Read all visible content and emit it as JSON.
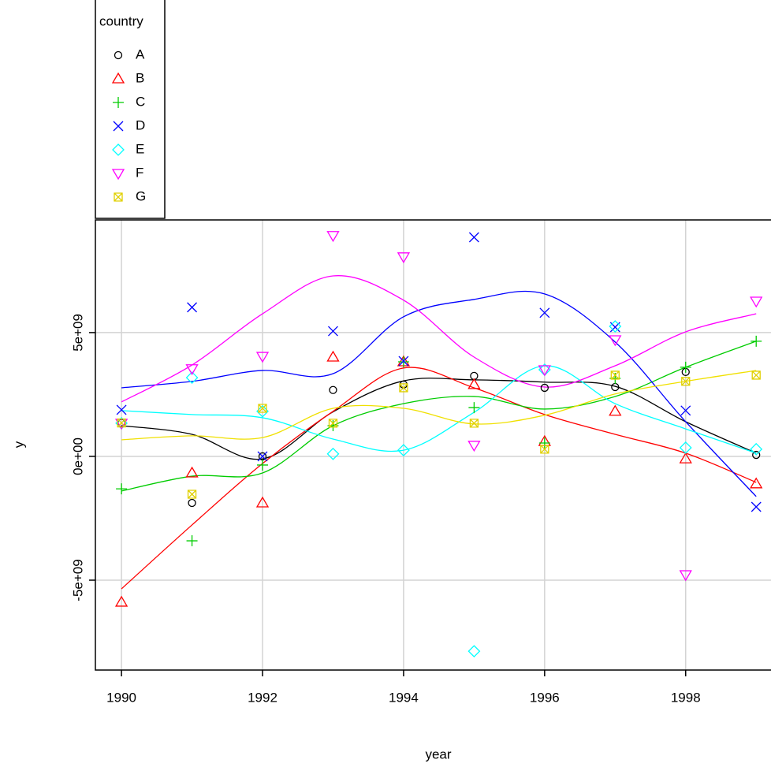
{
  "chart_data": {
    "type": "scatter",
    "x_label": "year",
    "y_label": "y",
    "legend_title": "country",
    "legend_position": "top-left",
    "grid": true,
    "x": [
      1990,
      1991,
      1992,
      1993,
      1994,
      1995,
      1996,
      1997,
      1998,
      1999
    ],
    "xlim": [
      1989.63,
      1999.21
    ],
    "xticks": [
      1990,
      1992,
      1994,
      1996,
      1998
    ],
    "ylim": [
      -8630000000,
      9550000000
    ],
    "yticks": [
      {
        "value": -5000000000,
        "label": "-5e+09"
      },
      {
        "value": 0,
        "label": "0e+00"
      },
      {
        "value": 5000000000,
        "label": "5e+09"
      }
    ],
    "series": [
      {
        "name": "A",
        "color": "#000000",
        "marker": "circle",
        "values": [
          1350000000,
          -1880000000,
          0,
          2680000000,
          2900000000,
          3250000000,
          2770000000,
          2800000000,
          3410000000,
          60000000
        ],
        "smooth": [
          1240000000,
          890000000,
          -100000000,
          1800000000,
          3050000000,
          3090000000,
          3000000000,
          2830000000,
          1400000000,
          130000000
        ]
      },
      {
        "name": "B",
        "color": "#ff0000",
        "marker": "triangle",
        "values": [
          -5890000000,
          -670000000,
          -1880000000,
          4010000000,
          3820000000,
          2900000000,
          600000000,
          1820000000,
          -100000000,
          -1110000000
        ],
        "smooth": [
          -5350000000,
          -2770000000,
          -290000000,
          1820000000,
          3570000000,
          2770000000,
          1690000000,
          890000000,
          130000000,
          -1050000000
        ]
      },
      {
        "name": "C",
        "color": "#00cc00",
        "marker": "plus",
        "values": [
          -1310000000,
          -3410000000,
          -350000000,
          1240000000,
          3820000000,
          1970000000,
          540000000,
          3150000000,
          3600000000,
          4650000000
        ],
        "smooth": [
          -1400000000,
          -800000000,
          -670000000,
          1240000000,
          2130000000,
          2420000000,
          1910000000,
          2420000000,
          3600000000,
          4650000000
        ]
      },
      {
        "name": "D",
        "color": "#0000ff",
        "marker": "cross",
        "values": [
          1880000000,
          6020000000,
          0,
          5060000000,
          3850000000,
          8850000000,
          5800000000,
          5220000000,
          1850000000,
          -2040000000
        ],
        "smooth": [
          2770000000,
          3030000000,
          3470000000,
          3340000000,
          5640000000,
          6340000000,
          6560000000,
          4620000000,
          1400000000,
          -1620000000
        ]
      },
      {
        "name": "E",
        "color": "#00ffff",
        "marker": "diamond",
        "values": [
          1340000000,
          3180000000,
          1820000000,
          100000000,
          250000000,
          -7870000000,
          3500000000,
          5250000000,
          350000000,
          290000000
        ],
        "smooth": [
          1850000000,
          1690000000,
          1560000000,
          700000000,
          250000000,
          1780000000,
          3660000000,
          2130000000,
          1110000000,
          130000000
        ]
      },
      {
        "name": "F",
        "color": "#ff00ff",
        "marker": "triangle-down",
        "values": [
          1340000000,
          3540000000,
          4040000000,
          8920000000,
          8060000000,
          450000000,
          3500000000,
          4710000000,
          -4780000000,
          6270000000
        ],
        "smooth": [
          2200000000,
          3690000000,
          5760000000,
          7290000000,
          6310000000,
          4010000000,
          2800000000,
          3660000000,
          5030000000,
          5760000000
        ]
      },
      {
        "name": "G",
        "color": "#ffff00",
        "marker": "square-x",
        "values": [
          1350000000,
          -1530000000,
          1940000000,
          1340000000,
          2770000000,
          1340000000,
          290000000,
          3280000000,
          3030000000,
          3280000000
        ],
        "smooth": [
          670000000,
          830000000,
          760000000,
          1940000000,
          1940000000,
          1310000000,
          1660000000,
          2520000000,
          3030000000,
          3470000000
        ]
      }
    ]
  }
}
